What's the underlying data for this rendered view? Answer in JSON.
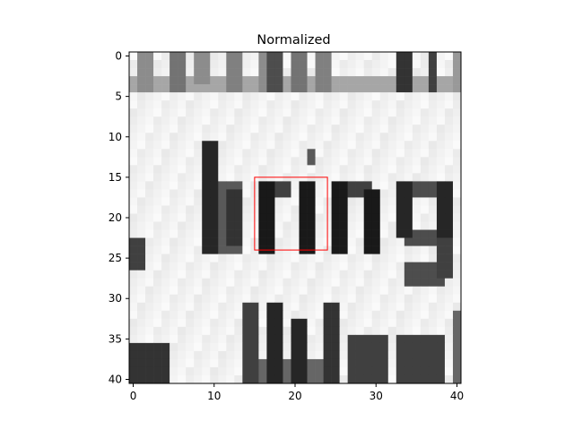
{
  "chart_data": {
    "type": "heatmap",
    "title": "Normalized",
    "xlabel": "",
    "ylabel": "",
    "colormap": "gray",
    "grid": false,
    "xlim": [
      -0.5,
      40.5
    ],
    "ylim": [
      40.5,
      -0.5
    ],
    "x_ticks": [
      0,
      10,
      20,
      30,
      40
    ],
    "y_ticks": [
      0,
      5,
      10,
      15,
      20,
      25,
      30,
      35,
      40
    ],
    "image_size": [
      41,
      41
    ],
    "image_content": {
      "visible_text_fragments": [
        "bring",
        "Wee"
      ],
      "description": "grayscale crop of printed text"
    },
    "highlight_box": {
      "x0": 15,
      "y0": 15,
      "x1": 24,
      "y1": 24,
      "color": "#ff0000"
    }
  }
}
